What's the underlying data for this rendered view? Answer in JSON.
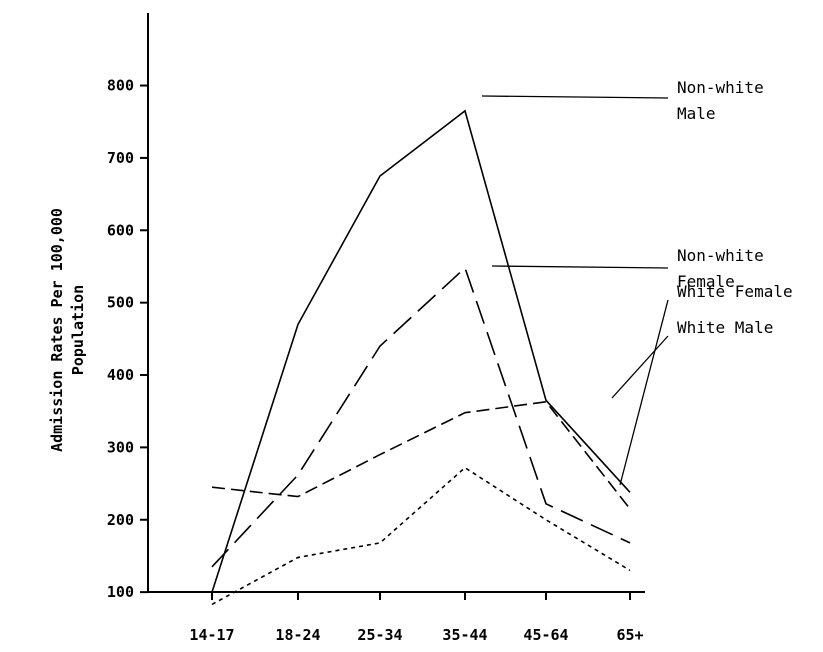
{
  "chart_data": {
    "type": "line",
    "title": "",
    "xlabel": "",
    "ylabel": "Admission Rates Per 100,000",
    "ylabel_line2": "Population",
    "categories": [
      "14-17",
      "18-24",
      "25-34",
      "35-44",
      "45-64",
      "65+"
    ],
    "ylim": [
      0,
      800
    ],
    "yticks": [
      100,
      200,
      300,
      400,
      500,
      600,
      700,
      800
    ],
    "grid": false,
    "legend": "direct labels on right",
    "series": [
      {
        "name": "Non-white Male",
        "name_lines": [
          "Non-white",
          "Male"
        ],
        "style": "solid",
        "values": [
          100,
          470,
          675,
          765,
          365,
          238
        ]
      },
      {
        "name": "Non-white Female",
        "name_lines": [
          "Non-white",
          "Female"
        ],
        "style": "long-dash",
        "values": [
          135,
          262,
          440,
          548,
          222,
          168
        ]
      },
      {
        "name": "White Male",
        "name_lines": [
          "White Male"
        ],
        "style": "medium-dash",
        "values": [
          245,
          232,
          290,
          348,
          363,
          215
        ]
      },
      {
        "name": "White Female",
        "name_lines": [
          "White Female"
        ],
        "style": "short-dash",
        "values": [
          83,
          148,
          168,
          272,
          200,
          130
        ]
      }
    ]
  }
}
